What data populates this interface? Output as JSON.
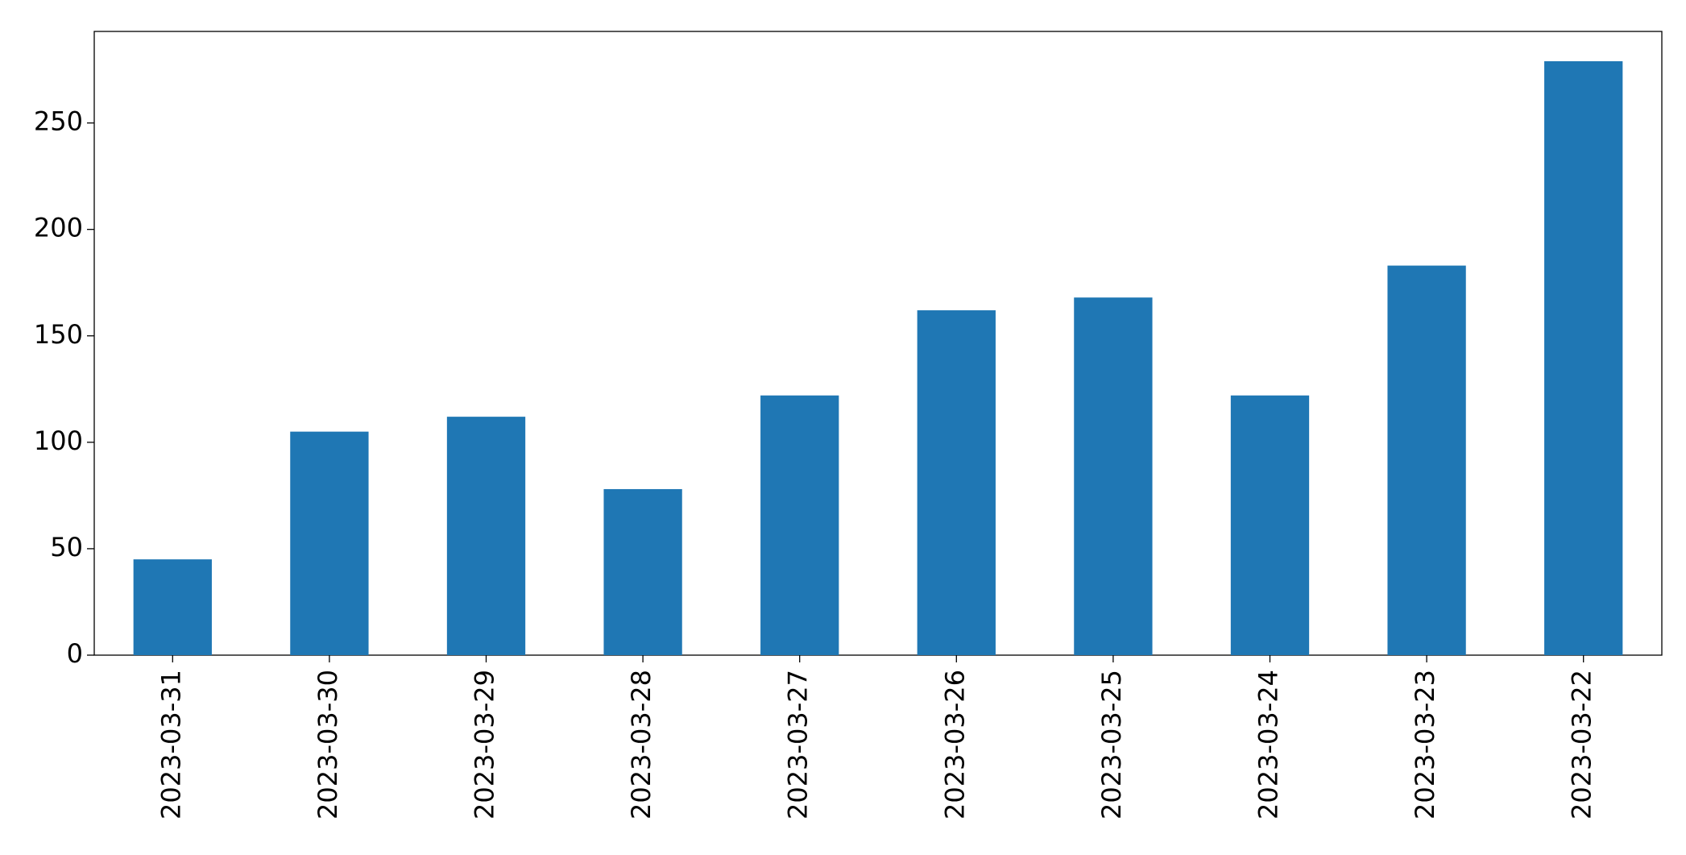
{
  "chart_data": {
    "type": "bar",
    "categories": [
      "2023-03-31",
      "2023-03-30",
      "2023-03-29",
      "2023-03-28",
      "2023-03-27",
      "2023-03-26",
      "2023-03-25",
      "2023-03-24",
      "2023-03-23",
      "2023-03-22"
    ],
    "values": [
      45,
      105,
      112,
      78,
      122,
      162,
      168,
      122,
      183,
      279
    ],
    "color": "#1f77b4",
    "ylim": [
      0,
      293
    ],
    "yticks": [
      0,
      50,
      100,
      150,
      200,
      250
    ],
    "grid": false
  }
}
